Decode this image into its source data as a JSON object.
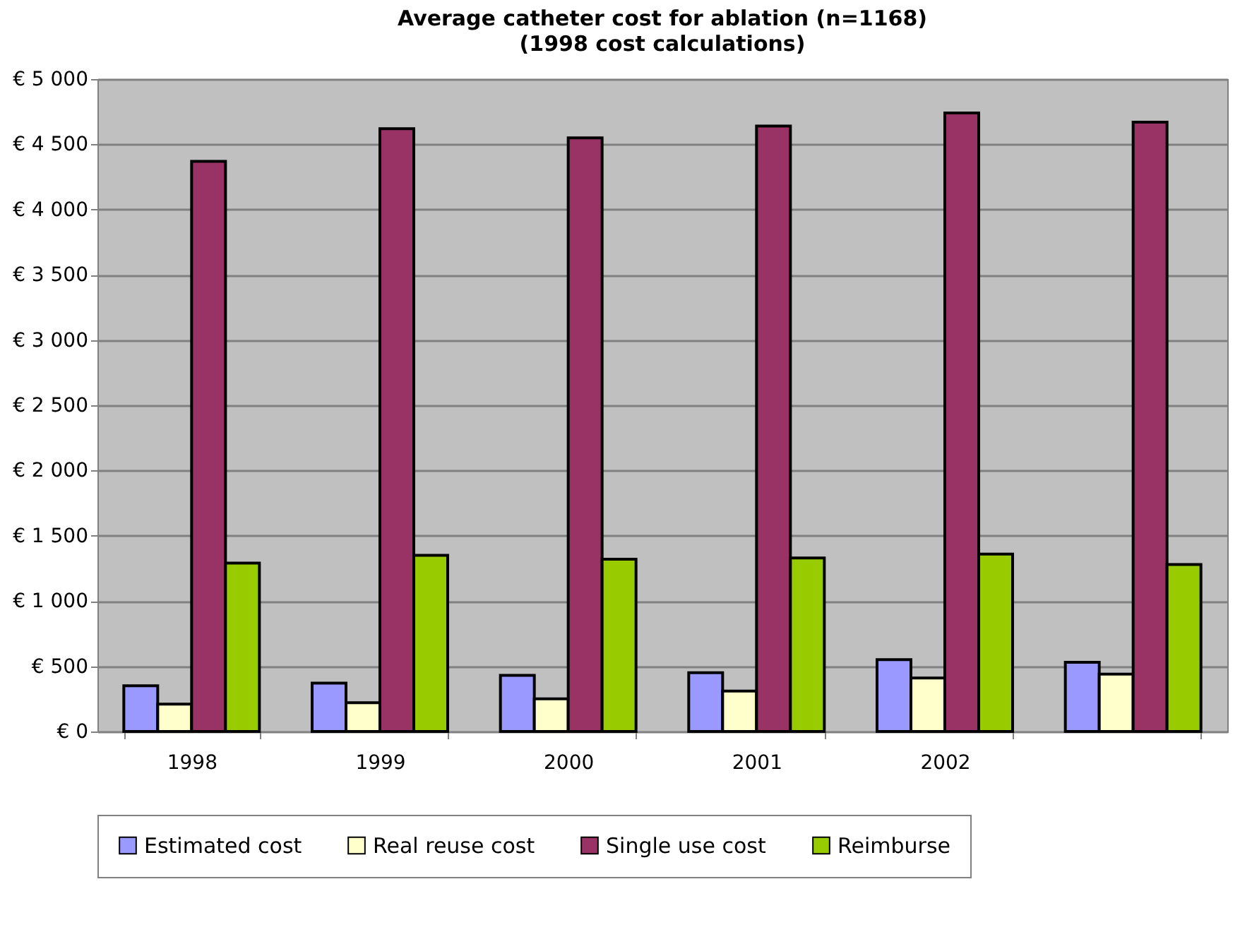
{
  "chart_data": {
    "type": "bar",
    "title": "Average catheter cost for ablation (n=1168)",
    "subtitle": "(1998 cost calculations)",
    "categories": [
      "1998",
      "1999",
      "2000",
      "2001",
      "2002",
      null
    ],
    "series": [
      {
        "name": "Estimated cost",
        "color": "#9999ff",
        "values": [
          350,
          370,
          430,
          450,
          550,
          530
        ]
      },
      {
        "name": "Real reuse cost",
        "color": "#ffffcc",
        "values": [
          210,
          220,
          250,
          310,
          410,
          440
        ]
      },
      {
        "name": "Single use cost",
        "color": "#993366",
        "values": [
          4370,
          4620,
          4550,
          4640,
          4740,
          4670
        ]
      },
      {
        "name": "Reimburse",
        "color": "#99cc00",
        "values": [
          1290,
          1350,
          1320,
          1330,
          1360,
          1280
        ]
      }
    ],
    "ylim": [
      0,
      5000
    ],
    "yticks": [
      {
        "value": 0,
        "label": "€ 0"
      },
      {
        "value": 500,
        "label": "€ 500"
      },
      {
        "value": 1000,
        "label": "€ 1 000"
      },
      {
        "value": 1500,
        "label": "€ 1 500"
      },
      {
        "value": 2000,
        "label": "€ 2 000"
      },
      {
        "value": 2500,
        "label": "€ 2 500"
      },
      {
        "value": 3000,
        "label": "€ 3 000"
      },
      {
        "value": 3500,
        "label": "€ 3 500"
      },
      {
        "value": 4000,
        "label": "€ 4 000"
      },
      {
        "value": 4500,
        "label": "€ 4 500"
      },
      {
        "value": 5000,
        "label": "€ 5 000"
      }
    ],
    "grid": "y",
    "legend": "bottom"
  }
}
